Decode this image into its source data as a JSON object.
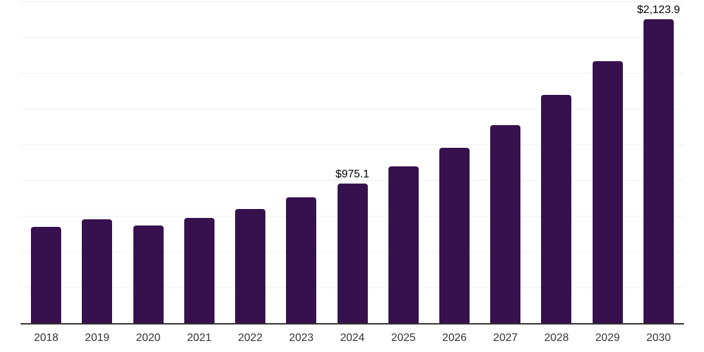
{
  "chart_data": {
    "type": "bar",
    "title": "",
    "xlabel": "",
    "ylabel": "",
    "categories": [
      "2018",
      "2019",
      "2020",
      "2021",
      "2022",
      "2023",
      "2024",
      "2025",
      "2026",
      "2027",
      "2028",
      "2029",
      "2030"
    ],
    "values": [
      673,
      726,
      683,
      736,
      798,
      882,
      975.1,
      1095,
      1227,
      1387,
      1596,
      1834,
      2123.9
    ],
    "value_labels": [
      "",
      "",
      "",
      "",
      "",
      "",
      "$975.1",
      "",
      "",
      "",
      "",
      "",
      "$2,123.9"
    ],
    "ylim": [
      0,
      2250
    ],
    "gridline_interval": 250,
    "grid": true,
    "legend": false,
    "colors": {
      "bar": "#36114D",
      "axis_line": "#333333",
      "gridline": "#f0f0f0",
      "tick_label": "#333333",
      "data_label": "#000000",
      "background": "#ffffff"
    }
  }
}
